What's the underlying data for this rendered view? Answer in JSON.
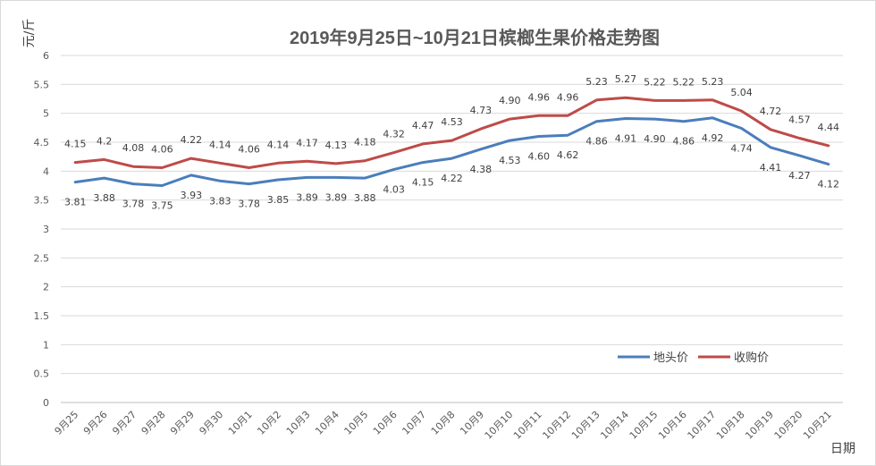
{
  "chart_data": {
    "type": "line",
    "title": "2019年9月25日~10月21日槟榔生果价格走势图",
    "xlabel": "日期",
    "ylabel": "元/斤",
    "ylim": [
      0,
      6
    ],
    "yticks": [
      "0",
      "0.5",
      "1",
      "1.5",
      "2",
      "2.5",
      "3",
      "3.5",
      "4",
      "4.5",
      "5",
      "5.5",
      "6"
    ],
    "grid": "horizontal",
    "legend_position": "right, inside plot near bottom",
    "categories": [
      "9月25",
      "9月26",
      "9月27",
      "9月28",
      "9月29",
      "9月30",
      "10月1",
      "10月2",
      "10月3",
      "10月4",
      "10月5",
      "10月6",
      "10月7",
      "10月8",
      "10月9",
      "10月10",
      "10月11",
      "10月12",
      "10月13",
      "10月14",
      "10月15",
      "10月16",
      "10月17",
      "10月18",
      "10月19",
      "10月20",
      "10月21"
    ],
    "series": [
      {
        "name": "地头价",
        "color": "#4a7ebb",
        "values": [
          3.81,
          3.88,
          3.78,
          3.75,
          3.93,
          3.83,
          3.78,
          3.85,
          3.89,
          3.89,
          3.88,
          4.03,
          4.15,
          4.22,
          4.38,
          4.53,
          4.6,
          4.62,
          4.86,
          4.91,
          4.9,
          4.86,
          4.92,
          4.74,
          4.41,
          4.27,
          4.12
        ],
        "labels": [
          "3.81",
          "3.88",
          "3.78",
          "3.75",
          "3.93",
          "3.83",
          "3.78",
          "3.85",
          "3.89",
          "3.89",
          "3.88",
          "4.03",
          "4.15",
          "4.22",
          "4.38",
          "4.53",
          "4.60",
          "4.62",
          "4.86",
          "4.91",
          "4.90",
          "4.86",
          "4.92",
          "4.74",
          "4.41",
          "4.27",
          "4.12"
        ]
      },
      {
        "name": "收购价",
        "color": "#be4b48",
        "values": [
          4.15,
          4.2,
          4.08,
          4.06,
          4.22,
          4.14,
          4.06,
          4.14,
          4.17,
          4.13,
          4.18,
          4.32,
          4.47,
          4.53,
          4.73,
          4.9,
          4.96,
          4.96,
          5.23,
          5.27,
          5.22,
          5.22,
          5.23,
          5.04,
          4.72,
          4.57,
          4.44
        ],
        "labels": [
          "4.15",
          "4.2",
          "4.08",
          "4.06",
          "4.22",
          "4.14",
          "4.06",
          "4.14",
          "4.17",
          "4.13",
          "4.18",
          "4.32",
          "4.47",
          "4.53",
          "4.73",
          "4.90",
          "4.96",
          "4.96",
          "5.23",
          "5.27",
          "5.22",
          "5.22",
          "5.23",
          "5.04",
          "4.72",
          "4.57",
          "4.44"
        ]
      }
    ]
  }
}
